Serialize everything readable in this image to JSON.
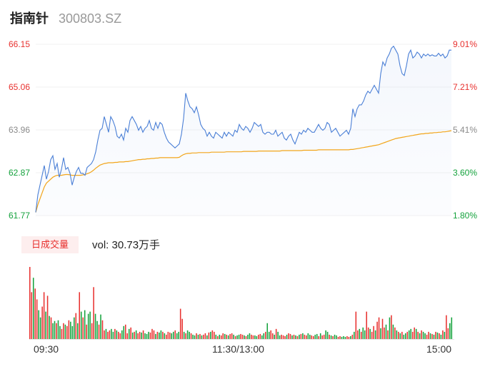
{
  "header": {
    "name": "指南针",
    "code": "300803.SZ"
  },
  "volume": {
    "tag": "日成交量",
    "summary": "vol: 30.73万手"
  },
  "colors": {
    "price_line": "#4a7fd6",
    "avg_line": "#f2a51a",
    "up": "#e8312f",
    "down": "#14a23c"
  },
  "chart_data": [
    {
      "type": "area",
      "title": "",
      "y_labels": [
        "66.15",
        "65.06",
        "63.96",
        "62.87",
        "61.77"
      ],
      "y_labels_right": [
        "9.01%",
        "7.21%",
        "5.41%",
        "3.60%",
        "1.80%"
      ],
      "ylim": [
        61.77,
        66.15
      ],
      "x_labels": [
        "09:30",
        "11:30/13:00",
        "15:00"
      ],
      "series": [
        {
          "values": [
            61.85,
            62.3,
            62.55,
            62.8,
            63.05,
            62.7,
            62.9,
            63.2,
            63.3,
            62.95,
            63.1,
            62.75,
            62.95,
            63.25,
            62.95,
            63.0,
            62.85,
            62.55,
            62.75,
            62.9,
            63.0,
            62.85,
            62.85,
            62.8,
            63.0,
            63.05,
            63.1,
            63.2,
            63.4,
            63.7,
            63.95,
            64.0,
            64.3,
            64.1,
            63.9,
            64.3,
            64.2,
            64.05,
            63.8,
            63.75,
            63.85,
            63.7,
            64.0,
            63.9,
            64.2,
            64.3,
            64.2,
            64.1,
            63.95,
            64.05,
            63.9,
            64.0,
            64.05,
            64.2,
            64.0,
            63.95,
            64.15,
            64.0,
            64.15,
            64.1,
            63.9,
            63.75,
            63.65,
            63.6,
            63.55,
            63.5,
            63.55,
            63.6,
            63.85,
            64.25,
            64.9,
            64.7,
            64.55,
            64.5,
            64.4,
            64.55,
            64.35,
            64.1,
            64.0,
            63.95,
            63.8,
            63.9,
            63.8,
            63.75,
            63.9,
            63.85,
            63.8,
            63.75,
            63.9,
            63.8,
            63.9,
            63.85,
            63.8,
            63.95,
            63.9,
            64.1,
            64.0,
            63.95,
            64.05,
            64.0,
            63.9,
            64.0,
            64.15,
            64.1,
            64.05,
            64.1,
            63.9,
            63.85,
            63.9,
            63.9,
            63.85,
            63.85,
            63.95,
            63.8,
            63.85,
            63.9,
            63.75,
            63.7,
            63.8,
            63.85,
            63.7,
            63.6,
            63.75,
            63.9,
            63.85,
            63.95,
            63.9,
            64.0,
            63.95,
            63.9,
            63.9,
            64.0,
            64.1,
            64.0,
            63.95,
            64.0,
            64.15,
            64.1,
            63.9,
            63.95,
            64.0,
            63.9,
            63.8,
            63.85,
            63.9,
            63.95,
            63.85,
            64.0,
            64.5,
            64.3,
            64.5,
            64.6,
            64.6,
            64.7,
            64.85,
            64.95,
            64.9,
            65.0,
            65.1,
            65.0,
            64.9,
            65.4,
            65.7,
            65.6,
            65.8,
            65.9,
            66.05,
            66.1,
            66.0,
            65.9,
            65.6,
            65.4,
            65.35,
            65.6,
            65.9,
            66.0,
            65.8,
            65.85,
            65.95,
            65.9,
            65.8,
            65.9,
            65.85,
            65.9,
            65.85,
            65.88,
            65.85,
            65.85,
            65.92,
            65.85,
            65.9,
            65.8,
            65.85,
            66.0,
            66.0
          ]
        },
        {
          "values": [
            61.85,
            62.05,
            62.2,
            62.35,
            62.5,
            62.6,
            62.65,
            62.7,
            62.75,
            62.78,
            62.8,
            62.8,
            62.8,
            62.81,
            62.82,
            62.82,
            62.81,
            62.8,
            62.8,
            62.8,
            62.8,
            62.8,
            62.81,
            62.82,
            62.84,
            62.86,
            62.89,
            62.93,
            62.98,
            63.02,
            63.06,
            63.08,
            63.1,
            63.11,
            63.12,
            63.12,
            63.12,
            63.13,
            63.13,
            63.14,
            63.14,
            63.14,
            63.15,
            63.15,
            63.16,
            63.17,
            63.18,
            63.19,
            63.2,
            63.2,
            63.21,
            63.21,
            63.22,
            63.22,
            63.23,
            63.23,
            63.24,
            63.24,
            63.25,
            63.25,
            63.25,
            63.25,
            63.25,
            63.25,
            63.25,
            63.25,
            63.25,
            63.26,
            63.3,
            63.33,
            63.35,
            63.36,
            63.36,
            63.37,
            63.37,
            63.37,
            63.38,
            63.38,
            63.38,
            63.38,
            63.38,
            63.38,
            63.39,
            63.39,
            63.39,
            63.39,
            63.39,
            63.39,
            63.39,
            63.4,
            63.4,
            63.4,
            63.4,
            63.4,
            63.4,
            63.4,
            63.4,
            63.41,
            63.41,
            63.41,
            63.41,
            63.41,
            63.41,
            63.41,
            63.42,
            63.42,
            63.42,
            63.42,
            63.42,
            63.42,
            63.42,
            63.42,
            63.42,
            63.42,
            63.42,
            63.43,
            63.43,
            63.43,
            63.43,
            63.43,
            63.43,
            63.43,
            63.43,
            63.43,
            63.43,
            63.44,
            63.44,
            63.44,
            63.44,
            63.44,
            63.44,
            63.44,
            63.45,
            63.45,
            63.45,
            63.45,
            63.45,
            63.45,
            63.45,
            63.45,
            63.45,
            63.45,
            63.45,
            63.45,
            63.45,
            63.45,
            63.45,
            63.46,
            63.46,
            63.47,
            63.48,
            63.49,
            63.5,
            63.51,
            63.52,
            63.53,
            63.54,
            63.55,
            63.56,
            63.57,
            63.58,
            63.6,
            63.62,
            63.64,
            63.66,
            63.68,
            63.7,
            63.72,
            63.74,
            63.75,
            63.76,
            63.77,
            63.78,
            63.79,
            63.8,
            63.81,
            63.82,
            63.83,
            63.84,
            63.85,
            63.86,
            63.86,
            63.87,
            63.87,
            63.88,
            63.88,
            63.89,
            63.89,
            63.9,
            63.9,
            63.91,
            63.91,
            63.92,
            63.93,
            63.94
          ]
        }
      ]
    },
    {
      "type": "bar",
      "title": "vol: 30.73万手",
      "values": [
        100,
        65,
        85,
        70,
        55,
        40,
        30,
        45,
        65,
        38,
        60,
        32,
        30,
        22,
        25,
        22,
        26,
        18,
        14,
        22,
        20,
        18,
        26,
        24,
        18,
        30,
        36,
        22,
        65,
        38,
        30,
        40,
        20,
        35,
        38,
        22,
        72,
        35,
        25,
        20,
        34,
        26,
        12,
        14,
        10,
        12,
        14,
        10,
        14,
        12,
        10,
        8,
        12,
        18,
        20,
        8,
        14,
        16,
        9,
        10,
        12,
        8,
        10,
        9,
        12,
        8,
        7,
        10,
        9,
        14,
        12,
        7,
        10,
        9,
        12,
        10,
        8,
        6,
        10,
        9,
        8,
        10,
        12,
        8,
        10,
        42,
        28,
        10,
        8,
        12,
        10,
        8,
        6,
        5,
        8,
        6,
        7,
        5,
        6,
        8,
        5,
        9,
        10,
        12,
        10,
        6,
        4,
        6,
        5,
        8,
        7,
        6,
        5,
        7,
        8,
        6,
        4,
        5,
        6,
        7,
        6,
        5,
        4,
        6,
        8,
        6,
        5,
        5,
        4,
        6,
        7,
        5,
        8,
        10,
        22,
        10,
        12,
        8,
        6,
        14,
        10,
        5,
        6,
        5,
        4,
        6,
        8,
        7,
        5,
        6,
        5,
        4,
        6,
        7,
        8,
        6,
        5,
        8,
        6,
        5,
        4,
        6,
        7,
        4,
        8,
        5,
        6,
        12,
        10,
        6,
        5,
        4,
        6,
        5,
        3,
        4,
        3,
        4,
        3,
        4,
        3,
        4,
        6,
        10,
        38,
        12,
        14,
        10,
        16,
        12,
        38,
        16,
        14,
        10,
        18,
        12,
        24,
        30,
        15,
        28,
        16,
        20,
        12,
        30,
        33,
        20,
        16,
        12,
        10,
        8,
        10,
        6,
        8,
        10,
        12,
        14,
        10,
        16,
        14,
        10,
        8,
        12,
        10,
        8,
        6,
        10,
        8,
        7,
        6,
        10,
        9,
        8,
        6,
        12,
        10,
        33,
        15,
        22,
        30
      ],
      "up": [
        1,
        1,
        0,
        1,
        1,
        0,
        0,
        1,
        1,
        0,
        1,
        0,
        1,
        0,
        0,
        1,
        0,
        0,
        1,
        1,
        0,
        1,
        1,
        0,
        0,
        0,
        1,
        0,
        1,
        0,
        1,
        0,
        1,
        0,
        0,
        1,
        1,
        0,
        0,
        1,
        0,
        1,
        1,
        0,
        1,
        1,
        0,
        0,
        1,
        0,
        1,
        1,
        0,
        0,
        1,
        1,
        0,
        1,
        0,
        1,
        0,
        1,
        1,
        0,
        1,
        0,
        0,
        0,
        1,
        1,
        1,
        0,
        1,
        0,
        0,
        1,
        0,
        1,
        1,
        1,
        0,
        0,
        1,
        0,
        0,
        1,
        1,
        0,
        1,
        0,
        0,
        1,
        0,
        0,
        1,
        0,
        1,
        0,
        1,
        1,
        0,
        1,
        0,
        1,
        1,
        0,
        1,
        0,
        1,
        1,
        0,
        1,
        0,
        1,
        1,
        0,
        1,
        0,
        0,
        1,
        1,
        0,
        1,
        0,
        0,
        1,
        1,
        0,
        0,
        1,
        1,
        0,
        0,
        1,
        0,
        0,
        1,
        1,
        0,
        1,
        0,
        0,
        1,
        1,
        1,
        0,
        1,
        1,
        0,
        1,
        0,
        1,
        0,
        1,
        0,
        1,
        1,
        0,
        0,
        1,
        1,
        0,
        0,
        1,
        0,
        1,
        1,
        0,
        0,
        1,
        0,
        1,
        0,
        0,
        1,
        1,
        0,
        0,
        0,
        1,
        1,
        0,
        1,
        0,
        1,
        1,
        0,
        1,
        0,
        0,
        1,
        1,
        0,
        1,
        1,
        0,
        1,
        1,
        0,
        1,
        1,
        0,
        1,
        0,
        1,
        0,
        1,
        0,
        1,
        0,
        1,
        0,
        0,
        1,
        0,
        0,
        1,
        1,
        0,
        1,
        0,
        1,
        0,
        0,
        1,
        1,
        0,
        1,
        0,
        1,
        0,
        1,
        0,
        1,
        0,
        1,
        1,
        0,
        0,
        1,
        1,
        0
      ]
    }
  ]
}
